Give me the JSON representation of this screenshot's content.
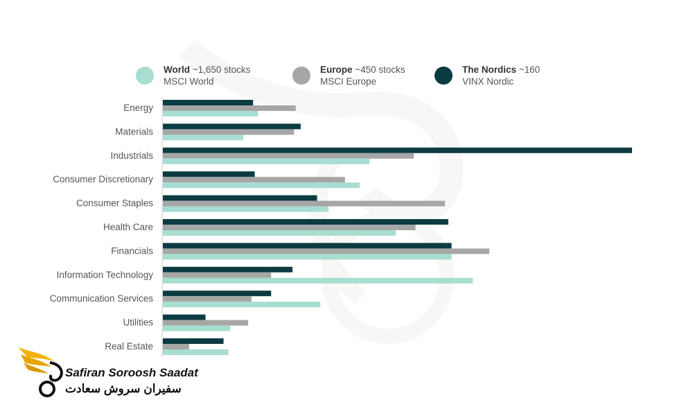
{
  "legend": [
    {
      "bold": "World",
      "rest": " ~1,650 stocks",
      "sub": "MSCI World",
      "color": "#a8ddd1"
    },
    {
      "bold": "Europe",
      "rest": " ~450 stocks",
      "sub": "MSCI Europe",
      "color": "#a6a6a6"
    },
    {
      "bold": "The Nordics",
      "rest": " ~160",
      "sub": "VINX Nordic",
      "color": "#0c3b42"
    }
  ],
  "logo": {
    "name_en": "Safiran Soroosh Saadat",
    "name_fa": "سفیران سروش سعادت"
  },
  "chart_data": {
    "type": "bar",
    "orientation": "horizontal",
    "categories": [
      "Energy",
      "Materials",
      "Industrials",
      "Consumer Discretionary",
      "Consumer Staples",
      "Health Care",
      "Financials",
      "Information Technology",
      "Communication Services",
      "Utilities",
      "Real Estate"
    ],
    "series": [
      {
        "name": "The Nordics",
        "color": "#0c3b42",
        "values": [
          5.5,
          8.4,
          28.6,
          5.6,
          9.4,
          17.4,
          17.6,
          7.9,
          6.6,
          2.6,
          3.7
        ]
      },
      {
        "name": "Europe",
        "color": "#a6a6a6",
        "values": [
          8.1,
          8.0,
          15.3,
          11.1,
          17.2,
          15.4,
          19.9,
          6.6,
          5.4,
          5.2,
          1.6
        ]
      },
      {
        "name": "World",
        "color": "#a8ddd1",
        "values": [
          5.8,
          4.9,
          12.6,
          12.0,
          10.1,
          14.2,
          17.6,
          18.9,
          9.6,
          4.1,
          4.0
        ]
      }
    ],
    "xlim": [
      0,
      28.6
    ],
    "grid": false,
    "legend_position": "top"
  }
}
